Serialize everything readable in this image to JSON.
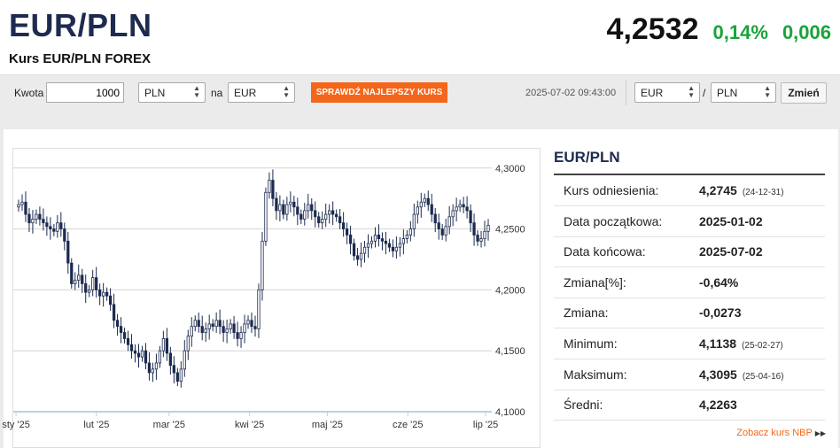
{
  "header": {
    "pair": "EUR/PLN",
    "subtitle": "Kurs EUR/PLN FOREX",
    "price": "4,2532",
    "change_pct": "0,14%",
    "change_abs": "0,006",
    "colors": {
      "positive": "#1aa33a",
      "title": "#1d2b4f"
    }
  },
  "converter": {
    "amount_label": "Kwota",
    "amount_value": "1000",
    "from_currency": "PLN",
    "to_label": "na",
    "to_currency": "EUR",
    "best_rate_button": "SPRAWDŹ NAJLEPSZY KURS",
    "timestamp": "2025-07-02 09:43:00",
    "pair_base": "EUR",
    "pair_sep": "/",
    "pair_quote": "PLN",
    "change_button": "Zmień",
    "accent": "#f4661b"
  },
  "stats": {
    "title": "EUR/PLN",
    "rows": [
      {
        "label": "Kurs odniesienia:",
        "value": "4,2745",
        "date": "(24-12-31)"
      },
      {
        "label": "Data początkowa:",
        "value": "2025-01-02",
        "date": ""
      },
      {
        "label": "Data końcowa:",
        "value": "2025-07-02",
        "date": ""
      },
      {
        "label": "Zmiana[%]:",
        "value": "-0,64%",
        "date": ""
      },
      {
        "label": "Zmiana:",
        "value": "-0,0273",
        "date": ""
      },
      {
        "label": "Minimum:",
        "value": "4,1138",
        "date": "(25-02-27)"
      },
      {
        "label": "Maksimum:",
        "value": "4,3095",
        "date": "(25-04-16)"
      },
      {
        "label": "Średni:",
        "value": "4,2263",
        "date": ""
      }
    ],
    "nbp_link": "Zobacz kurs NBP"
  },
  "chart_data": {
    "type": "candlestick",
    "x_range": [
      "2025-01-02",
      "2025-07-02"
    ],
    "ylim": [
      4.1,
      4.31
    ],
    "y_ticks": [
      "4,1000",
      "4,1500",
      "4,2000",
      "4,2500",
      "4,3000"
    ],
    "y_tick_values": [
      4.1,
      4.15,
      4.2,
      4.25,
      4.3
    ],
    "x_ticks": [
      "sty '25",
      "lut '25",
      "mar '25",
      "kwi '25",
      "maj '25",
      "cze '25",
      "lip '25"
    ],
    "x_tick_dates": [
      "2025-01-01",
      "2025-02-01",
      "2025-03-01",
      "2025-04-01",
      "2025-05-01",
      "2025-06-01",
      "2025-07-01"
    ],
    "grid": true,
    "up_color": "#ffffff",
    "down_color": "#1d2b4f",
    "closes": [
      4.27,
      4.272,
      4.262,
      4.255,
      4.258,
      4.262,
      4.258,
      4.255,
      4.252,
      4.25,
      4.248,
      4.255,
      4.25,
      4.24,
      4.222,
      4.205,
      4.208,
      4.212,
      4.205,
      4.198,
      4.2,
      4.21,
      4.2,
      4.195,
      4.198,
      4.195,
      4.188,
      4.175,
      4.17,
      4.165,
      4.16,
      4.155,
      4.15,
      4.148,
      4.145,
      4.15,
      4.14,
      4.132,
      4.135,
      4.14,
      4.15,
      4.16,
      4.148,
      4.138,
      4.132,
      4.125,
      4.135,
      4.15,
      4.162,
      4.17,
      4.175,
      4.17,
      4.165,
      4.168,
      4.172,
      4.17,
      4.175,
      4.17,
      4.165,
      4.168,
      4.172,
      4.165,
      4.16,
      4.165,
      4.172,
      4.175,
      4.17,
      4.168,
      4.2,
      4.24,
      4.28,
      4.29,
      4.275,
      4.265,
      4.27,
      4.262,
      4.27,
      4.272,
      4.268,
      4.262,
      4.258,
      4.265,
      4.27,
      4.265,
      4.26,
      4.255,
      4.258,
      4.262,
      4.265,
      4.262,
      4.26,
      4.255,
      4.25,
      4.245,
      4.238,
      4.228,
      4.225,
      4.23,
      4.235,
      4.238,
      4.24,
      4.245,
      4.242,
      4.24,
      4.238,
      4.235,
      4.232,
      4.235,
      4.238,
      4.242,
      4.245,
      4.25,
      4.262,
      4.268,
      4.272,
      4.275,
      4.27,
      4.262,
      4.255,
      4.25,
      4.245,
      4.252,
      4.26,
      4.265,
      4.268,
      4.27,
      4.268,
      4.265,
      4.255,
      4.245,
      4.24,
      4.242,
      4.248,
      4.253
    ]
  }
}
